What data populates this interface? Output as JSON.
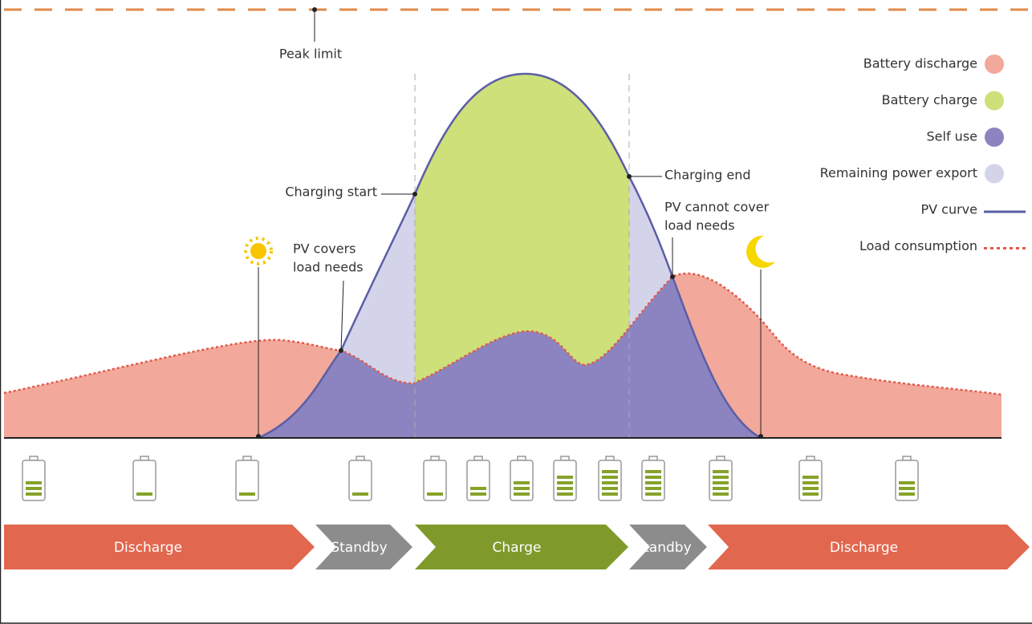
{
  "annotations": {
    "peak_limit": "Peak limit",
    "charging_start": "Charging start",
    "charging_end": "Charging end",
    "pv_covers": [
      "PV covers",
      "load needs"
    ],
    "pv_cannot_cover": [
      "PV cannot cover",
      "load needs"
    ]
  },
  "legend": [
    {
      "label": "Battery discharge",
      "color": "#f2a89a"
    },
    {
      "label": "Battery charge",
      "color": "#cde07a"
    },
    {
      "label": "Self use",
      "color": "#8b84c0"
    },
    {
      "label": "Remaining power export",
      "color": "#d3d4ea"
    },
    {
      "label": "PV curve",
      "color": "#5b5ea6"
    },
    {
      "label": "Load consumption",
      "color": "#e05a4a"
    }
  ],
  "battery_levels": [
    3,
    1,
    1,
    1,
    1,
    2,
    3,
    4,
    5,
    5,
    5,
    4,
    3
  ],
  "phases": [
    "Discharge",
    "Standby",
    "Charge",
    "Standby",
    "Discharge"
  ]
}
